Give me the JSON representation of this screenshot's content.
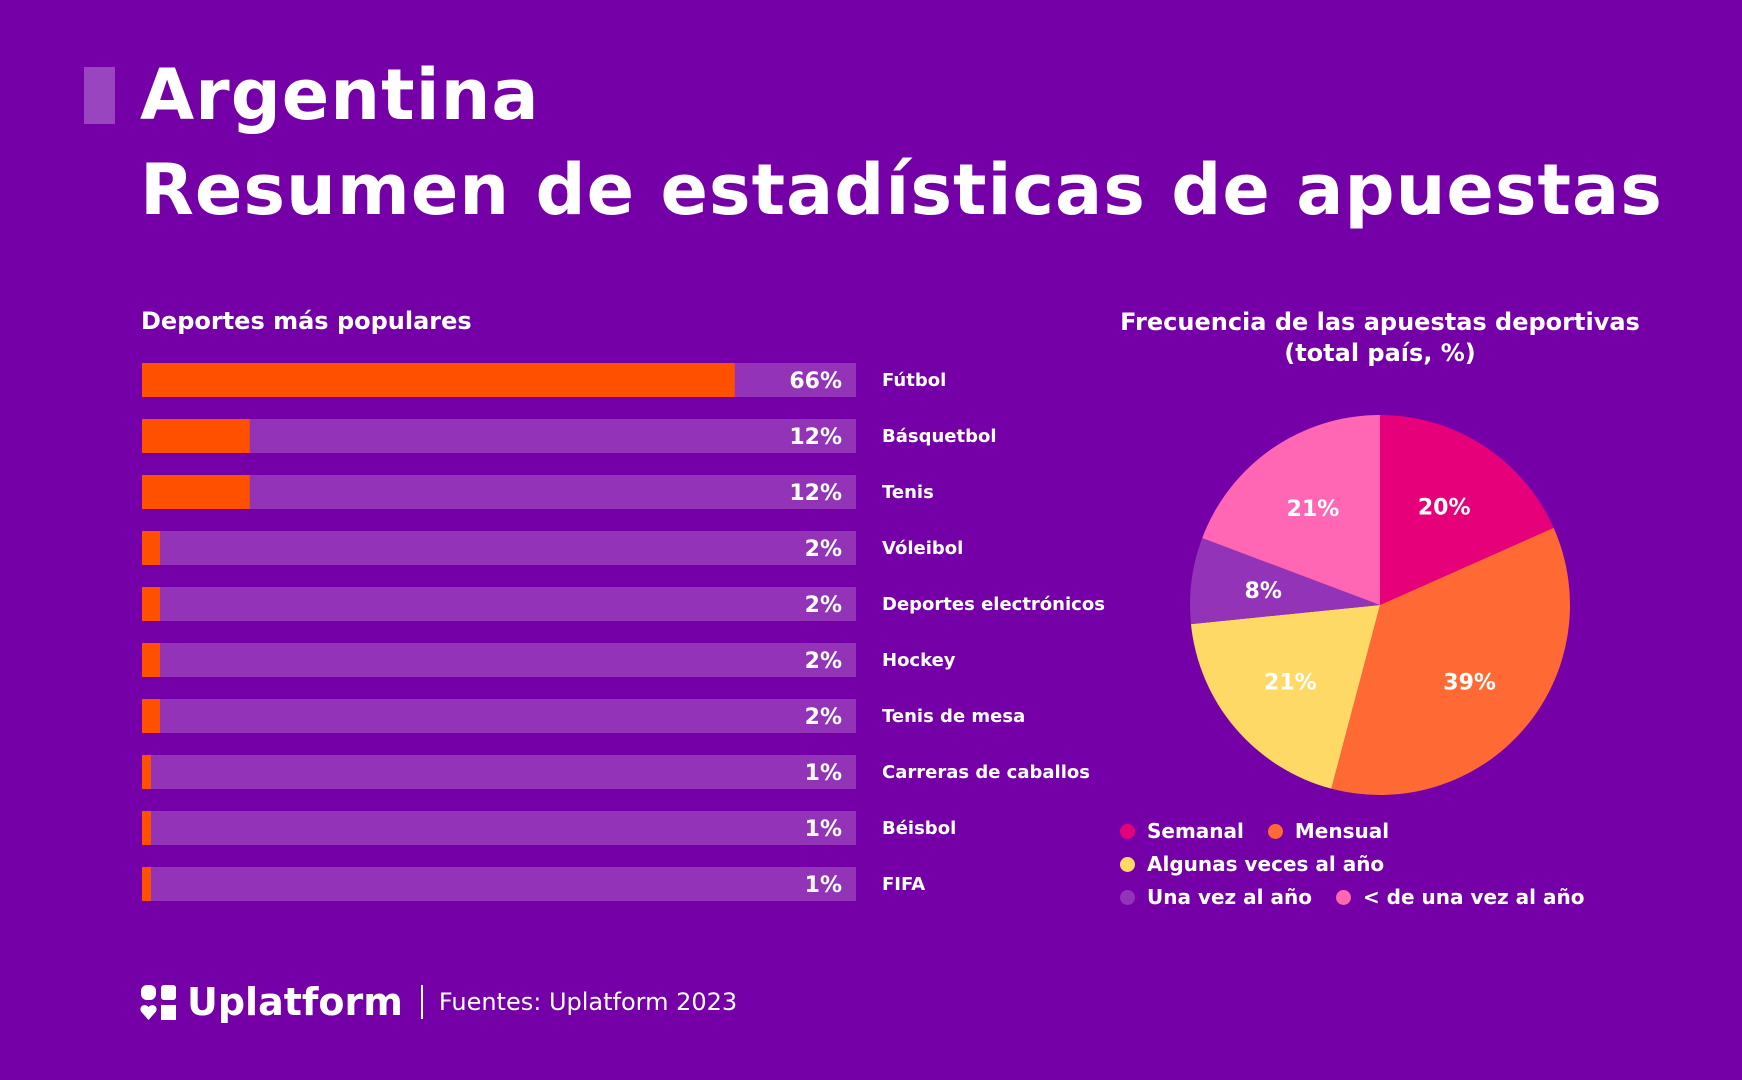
{
  "header": {
    "title_line1": "Argentina",
    "title_line2": "Resumen de estadísticas de apuestas"
  },
  "colors": {
    "background": "#7600a8",
    "bar_fill": "#ff5000",
    "bar_track": "#9334b8",
    "accent_mark": "#9a45c0"
  },
  "chart_data": [
    {
      "type": "bar",
      "orientation": "horizontal",
      "title": "Deportes más populares",
      "categories": [
        "Fútbol",
        "Básquetbol",
        "Tenis",
        "Vóleibol",
        "Deportes electrónicos",
        "Hockey",
        "Tenis de mesa",
        "Carreras de caballos",
        "Béisbol",
        "FIFA"
      ],
      "values": [
        66,
        12,
        12,
        2,
        2,
        2,
        2,
        1,
        1,
        1
      ],
      "value_labels": [
        "66%",
        "12%",
        "12%",
        "2%",
        "2%",
        "2%",
        "2%",
        "1%",
        "1%",
        "1%"
      ],
      "xlim": [
        0,
        79.5
      ],
      "xlabel": "",
      "ylabel": ""
    },
    {
      "type": "pie",
      "title": "Frecuencia de las apuestas deportivas (total país, %)",
      "labels": [
        "Semanal",
        "Mensual",
        "Algunas veces al año",
        "Una vez al año",
        "< de una vez al año"
      ],
      "values": [
        20,
        39,
        21,
        8,
        21
      ],
      "value_labels": [
        "20%",
        "39%",
        "21%",
        "8%",
        "21%"
      ],
      "colors": [
        "#e6007a",
        "#ff6933",
        "#ffd966",
        "#9334b8",
        "#ff66b3"
      ],
      "start_angle_deg": 0,
      "direction": "clockwise",
      "legend_position": "bottom"
    }
  ],
  "footer": {
    "brand": "Uplatform",
    "source": "Fuentes: Uplatform 2023"
  }
}
